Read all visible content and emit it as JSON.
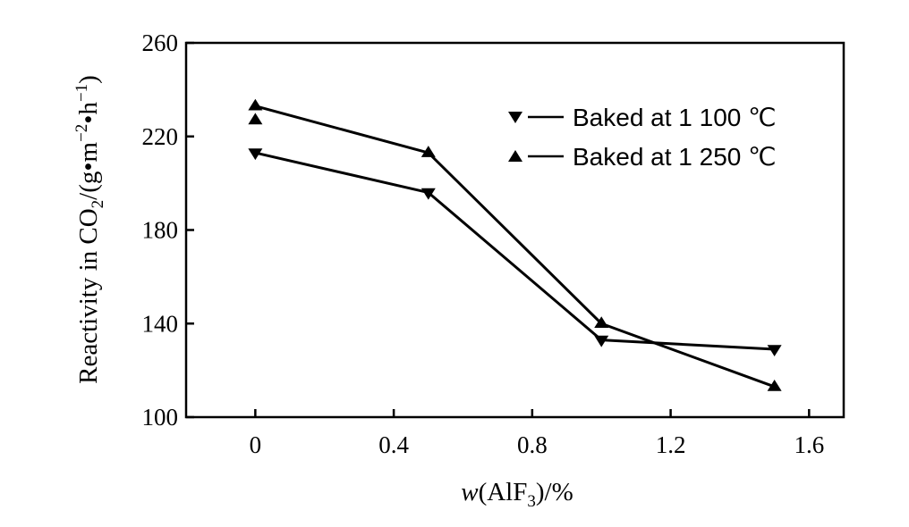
{
  "chart_data": {
    "type": "line",
    "xlabel": "w(AlF3)/%",
    "ylabel": "Reactivity in CO2/(g•m−2•h−1)",
    "xlim": [
      -0.2,
      1.7
    ],
    "ylim": [
      100,
      260
    ],
    "xticks": [
      "0",
      "0.4",
      "0.8",
      "1.2",
      "1.6"
    ],
    "xtick_values": [
      0,
      0.4,
      0.8,
      1.2,
      1.6
    ],
    "yticks": [
      "100",
      "140",
      "180",
      "220",
      "260"
    ],
    "ytick_values": [
      100,
      140,
      180,
      220,
      260
    ],
    "grid": false,
    "legend_position": "top-right",
    "series": [
      {
        "name": "Baked at 1 100 ℃",
        "marker": "triangle-down",
        "x": [
          0,
          0.5,
          1.0,
          1.5
        ],
        "y": [
          213,
          196,
          133,
          129
        ]
      },
      {
        "name": "Baked at 1 250 ℃",
        "marker": "triangle-up",
        "x": [
          0,
          0.5,
          1.0,
          1.5
        ],
        "y": [
          233,
          213,
          140,
          113
        ]
      }
    ],
    "extra_points": [
      {
        "series": "Baked at 1 250 ℃",
        "x": 0,
        "y": 227
      }
    ]
  }
}
